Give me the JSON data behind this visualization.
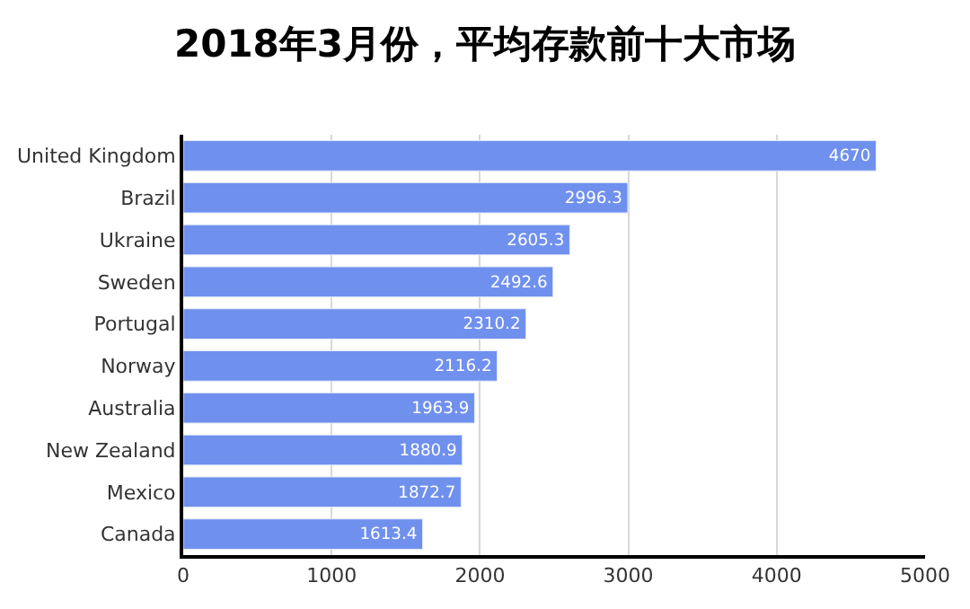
{
  "chart_data": {
    "type": "bar",
    "orientation": "horizontal",
    "title": "2018年3月份，平均存款前十大市场",
    "categories": [
      "United Kingdom",
      "Brazil",
      "Ukraine",
      "Sweden",
      "Portugal",
      "Norway",
      "Australia",
      "New Zealand",
      "Mexico",
      "Canada"
    ],
    "values": [
      4670,
      2996.3,
      2605.3,
      2492.6,
      2310.2,
      2116.2,
      1963.9,
      1880.9,
      1872.7,
      1613.4
    ],
    "color": "#7090ee",
    "xlim": [
      0,
      5000
    ],
    "xticks": [
      0,
      1000,
      2000,
      3000,
      4000,
      5000
    ],
    "grid": "x",
    "data_labels": true
  }
}
